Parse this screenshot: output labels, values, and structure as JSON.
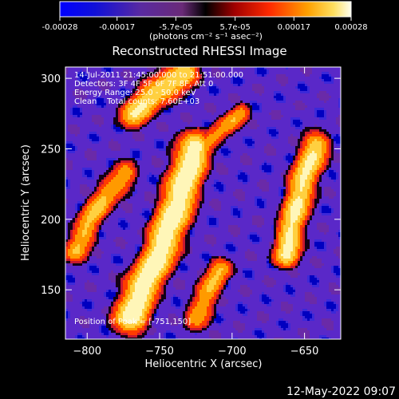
{
  "colorbar": {
    "tick_labels": [
      "-0.00028",
      "-0.00017",
      "-5.7e-05",
      "5.7e-05",
      "0.00017",
      "0.00028"
    ],
    "tick_values": [
      -0.00028,
      -0.00017,
      -5.7e-05,
      5.7e-05,
      0.00017,
      0.00028
    ],
    "range": [
      -0.00028,
      0.00028
    ],
    "units_label": "(photons cm⁻² s⁻¹ asec⁻²)"
  },
  "chart_data": {
    "type": "heatmap",
    "title": "Reconstructed RHESSI Image",
    "xlabel": "Heliocentric X (arcsec)",
    "ylabel": "Heliocentric Y (arcsec)",
    "xlim": [
      -815,
      -625
    ],
    "ylim": [
      115,
      308
    ],
    "x_ticks": [
      -800,
      -750,
      -700,
      -650
    ],
    "y_ticks": [
      150,
      200,
      250,
      300
    ],
    "info_lines": [
      "14-Jul-2011 21:45:00.000 to 21:51:00.000",
      "Detectors: 3F 4F 5F 6F 7F 8F, Att 0",
      "Energy Range: 25.0 - 50.0 keV",
      "Clean    Total counts: 7.60E+03"
    ],
    "peak_label": "Position of Peak = [-751,150]",
    "peak_position": [
      -751,
      150
    ],
    "colormap": [
      "#0000c0",
      "#3c28d8",
      "#5a28c8",
      "#6a2aa8",
      "#c81830",
      "#ff3c00",
      "#ff9a00",
      "#ffd040",
      "#fff6b8"
    ],
    "emission_ridges": [
      {
        "name": "main-ridge",
        "points": [
          [
            -770,
            130
          ],
          [
            -763,
            150
          ],
          [
            -752,
            170
          ],
          [
            -745,
            190
          ],
          [
            -738,
            210
          ],
          [
            -732,
            230
          ],
          [
            -726,
            250
          ]
        ],
        "width": 16,
        "peak": 1.0
      },
      {
        "name": "right-ridge",
        "points": [
          [
            -662,
            175
          ],
          [
            -660,
            190
          ],
          [
            -655,
            210
          ],
          [
            -650,
            230
          ],
          [
            -642,
            252
          ]
        ],
        "width": 13,
        "peak": 0.85
      },
      {
        "name": "top-blob",
        "points": [
          [
            -768,
            275
          ],
          [
            -757,
            286
          ],
          [
            -744,
            296
          ],
          [
            -732,
            303
          ]
        ],
        "width": 14,
        "peak": 0.8
      },
      {
        "name": "left-arm",
        "points": [
          [
            -808,
            178
          ],
          [
            -798,
            200
          ],
          [
            -786,
            218
          ],
          [
            -774,
            232
          ]
        ],
        "width": 12,
        "peak": 0.65
      },
      {
        "name": "lower-right",
        "points": [
          [
            -725,
            130
          ],
          [
            -716,
            150
          ],
          [
            -708,
            165
          ]
        ],
        "width": 12,
        "peak": 0.6
      },
      {
        "name": "mid-right",
        "points": [
          [
            -715,
            255
          ],
          [
            -704,
            266
          ],
          [
            -694,
            275
          ]
        ],
        "width": 10,
        "peak": 0.55
      }
    ]
  },
  "footer": {
    "timestamp": "12-May-2022 09:07"
  }
}
